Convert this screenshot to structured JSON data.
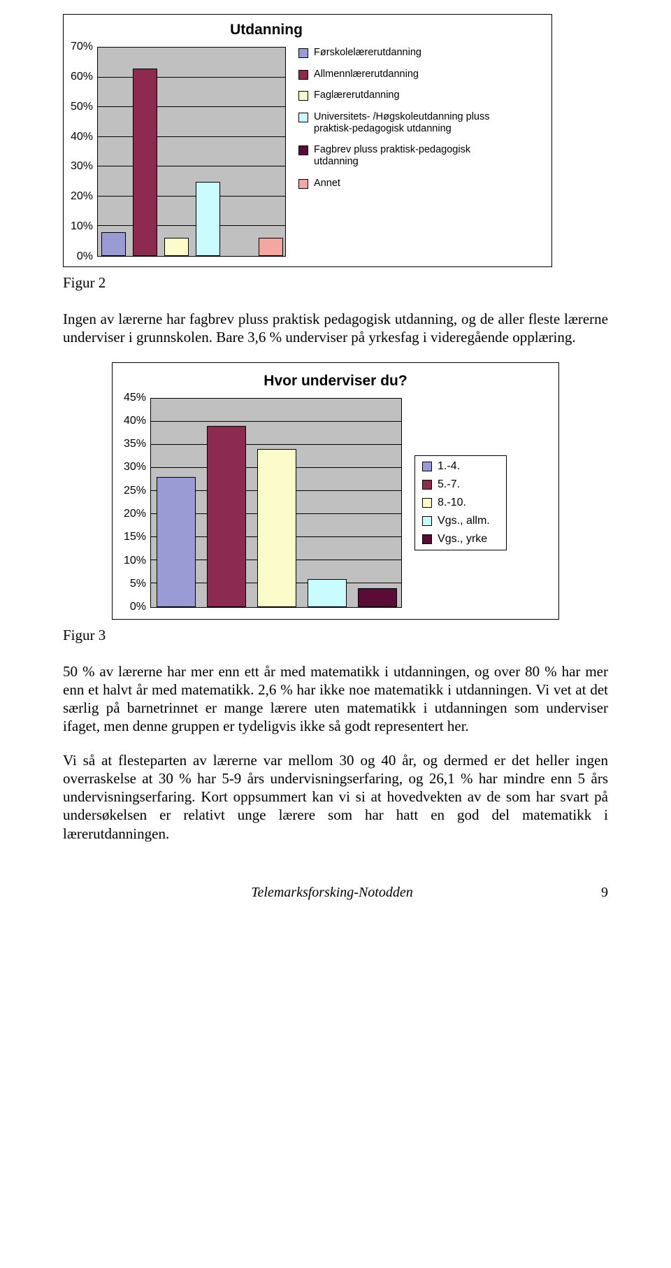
{
  "chart1": {
    "title": "Utdanning",
    "type": "bar",
    "background_color": "#c0c0c0",
    "grid_color": "#000000",
    "ylim_max": 70,
    "ytick_step": 10,
    "ytick_labels": [
      "70%",
      "60%",
      "50%",
      "40%",
      "30%",
      "20%",
      "10%",
      "0%"
    ],
    "bars": [
      {
        "value": 8,
        "color": "#9a9ad4"
      },
      {
        "value": 63,
        "color": "#8c2a50"
      },
      {
        "value": 6,
        "color": "#fcfccb"
      },
      {
        "value": 25,
        "color": "#c9fcfc"
      },
      {
        "value": 0,
        "color": "#580c36"
      },
      {
        "value": 6,
        "color": "#f2a8a0"
      }
    ],
    "legend": [
      {
        "color": "#9a9ad4",
        "label": "Førskolelærerutdanning"
      },
      {
        "color": "#8c2a50",
        "label": "Allmennlærerutdanning"
      },
      {
        "color": "#fcfccb",
        "label": "Faglærerutdanning"
      },
      {
        "color": "#c9fcfc",
        "label": "Universitets- /Høgskoleutdanning pluss praktisk-pedagogisk utdanning"
      },
      {
        "color": "#580c36",
        "label": "Fagbrev pluss praktisk-pedagogisk utdanning"
      },
      {
        "color": "#f2a8a0",
        "label": "Annet"
      }
    ]
  },
  "figure2_label": "Figur 2",
  "para1": "Ingen av lærerne har fagbrev pluss praktisk pedagogisk utdanning, og de aller fleste lærerne underviser i grunnskolen. Bare 3,6 % underviser på yrkesfag i videregående opplæring.",
  "chart2": {
    "title": "Hvor underviser du?",
    "type": "bar",
    "background_color": "#c0c0c0",
    "grid_color": "#000000",
    "ylim_max": 45,
    "ytick_step": 5,
    "ytick_labels": [
      "45%",
      "40%",
      "35%",
      "30%",
      "25%",
      "20%",
      "15%",
      "10%",
      "5%",
      "0%"
    ],
    "bars": [
      {
        "value": 28,
        "color": "#9a9ad4"
      },
      {
        "value": 39,
        "color": "#8c2a50"
      },
      {
        "value": 34,
        "color": "#fcfccb"
      },
      {
        "value": 6,
        "color": "#c9fcfc"
      },
      {
        "value": 4,
        "color": "#580c36"
      }
    ],
    "legend": [
      {
        "color": "#9a9ad4",
        "label": "1.-4."
      },
      {
        "color": "#8c2a50",
        "label": "5.-7."
      },
      {
        "color": "#fcfccb",
        "label": "8.-10."
      },
      {
        "color": "#c9fcfc",
        "label": "Vgs., allm."
      },
      {
        "color": "#580c36",
        "label": "Vgs., yrke"
      }
    ]
  },
  "figure3_label": "Figur 3",
  "para2": "50 % av lærerne har mer enn ett år med matematikk i utdanningen, og over 80 % har mer enn et halvt år med matematikk. 2,6 % har ikke noe matematikk i utdanningen. Vi vet at det særlig på barnetrinnet er mange lærere uten matematikk i utdanningen som underviser ifaget, men denne gruppen er tydeligvis ikke så godt representert her.",
  "para3": "Vi så at flesteparten av lærerne var mellom 30 og 40 år, og dermed er det heller ingen overraskelse at 30 % har 5-9 års undervisningserfaring, og 26,1 % har mindre enn 5 års undervisningserfaring. Kort oppsummert kan vi si at hovedvekten av de som har svart på undersøkelsen er relativt unge lærere som har hatt en god del matematikk i lærerutdanningen.",
  "footer_text": "Telemarksforsking-Notodden",
  "page_number": "9"
}
